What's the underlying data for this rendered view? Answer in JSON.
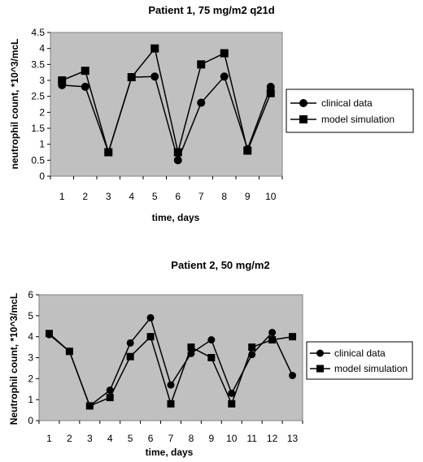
{
  "chart_data": [
    {
      "type": "line",
      "title": "Patient 1, 75 mg/m2 q21d",
      "xlabel": "time, days",
      "ylabel": "neutrophil count, *10^3/mcL",
      "x": [
        1,
        2,
        3,
        4,
        5,
        6,
        7,
        8,
        9,
        10
      ],
      "xticks": [
        "1",
        "2",
        "3",
        "4",
        "5",
        "6",
        "7",
        "8",
        "9",
        "10"
      ],
      "ylim": [
        0,
        4.5
      ],
      "yticks": [
        "0",
        "0.5",
        "1",
        "1.5",
        "2",
        "2.5",
        "3",
        "3.5",
        "4",
        "4.5"
      ],
      "grid": false,
      "legend": "right",
      "series": [
        {
          "name": "clinical data",
          "marker": "circle",
          "values": [
            2.85,
            2.8,
            0.75,
            3.1,
            3.12,
            0.5,
            2.3,
            3.12,
            0.85,
            2.8
          ]
        },
        {
          "name": "model simulation",
          "marker": "square",
          "values": [
            3.0,
            3.3,
            0.75,
            3.1,
            4.0,
            0.75,
            3.5,
            3.85,
            0.8,
            2.6
          ]
        }
      ]
    },
    {
      "type": "line",
      "title": "Patient 2, 50 mg/m2",
      "xlabel": "time, days",
      "ylabel": "Neutrophil count, *10^3/mcL",
      "x": [
        1,
        2,
        3,
        4,
        5,
        6,
        7,
        8,
        9,
        10,
        11,
        12,
        13
      ],
      "xticks": [
        "1",
        "2",
        "3",
        "4",
        "5",
        "6",
        "7",
        "8",
        "9",
        "10",
        "11",
        "12",
        "13"
      ],
      "ylim": [
        0,
        6
      ],
      "yticks": [
        "0",
        "1",
        "2",
        "3",
        "4",
        "5",
        "6"
      ],
      "grid": false,
      "legend": "right",
      "series": [
        {
          "name": "clinical data",
          "marker": "circle",
          "values": [
            4.1,
            3.3,
            0.7,
            1.45,
            3.7,
            4.9,
            1.7,
            3.2,
            3.85,
            1.3,
            3.15,
            4.2,
            2.15
          ]
        },
        {
          "name": "model simulation",
          "marker": "square",
          "values": [
            4.15,
            3.3,
            0.7,
            1.1,
            3.05,
            4.0,
            0.8,
            3.5,
            3.0,
            0.8,
            3.5,
            3.85,
            4.0
          ]
        }
      ]
    }
  ]
}
